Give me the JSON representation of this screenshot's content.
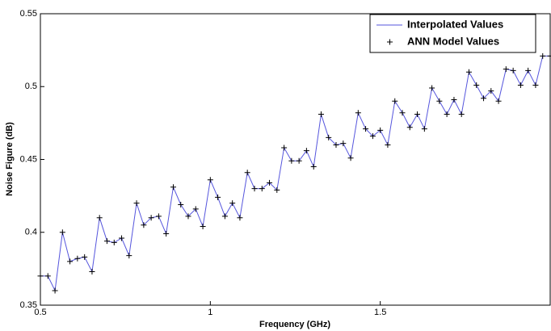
{
  "chart_data": {
    "type": "line",
    "x_label": "Frequency (GHz)",
    "y_label": "Noise Figure (dB)",
    "x": [
      0.5,
      0.522,
      0.543,
      0.565,
      0.587,
      0.609,
      0.63,
      0.652,
      0.674,
      0.696,
      0.717,
      0.739,
      0.761,
      0.783,
      0.804,
      0.826,
      0.848,
      0.87,
      0.891,
      0.913,
      0.935,
      0.957,
      0.978,
      1.0,
      1.022,
      1.043,
      1.065,
      1.087,
      1.109,
      1.13,
      1.152,
      1.174,
      1.196,
      1.217,
      1.239,
      1.261,
      1.283,
      1.304,
      1.326,
      1.348,
      1.37,
      1.391,
      1.413,
      1.435,
      1.457,
      1.478,
      1.5,
      1.522,
      1.543,
      1.565,
      1.587,
      1.609,
      1.63,
      1.652,
      1.674,
      1.696,
      1.717,
      1.739,
      1.761,
      1.783,
      1.804,
      1.826,
      1.848,
      1.87,
      1.891,
      1.913,
      1.935,
      1.957,
      1.978,
      2.0
    ],
    "series": [
      {
        "name": "Interpolated Values",
        "color": "#5555dd",
        "marker": "none",
        "values": [
          0.37,
          0.37,
          0.36,
          0.4,
          0.38,
          0.382,
          0.383,
          0.373,
          0.41,
          0.394,
          0.393,
          0.396,
          0.384,
          0.42,
          0.405,
          0.41,
          0.411,
          0.399,
          0.431,
          0.419,
          0.411,
          0.416,
          0.404,
          0.436,
          0.424,
          0.411,
          0.42,
          0.41,
          0.441,
          0.43,
          0.43,
          0.434,
          0.429,
          0.458,
          0.449,
          0.449,
          0.456,
          0.445,
          0.481,
          0.465,
          0.46,
          0.461,
          0.451,
          0.482,
          0.471,
          0.466,
          0.47,
          0.46,
          0.49,
          0.482,
          0.472,
          0.481,
          0.471,
          0.499,
          0.49,
          0.481,
          0.491,
          0.481,
          0.51,
          0.501,
          0.492,
          0.497,
          0.49,
          0.512,
          0.511,
          0.501,
          0.511,
          0.501,
          0.521,
          0.521
        ]
      },
      {
        "name": "ANN Model Values",
        "color": "#000000",
        "marker": "plus",
        "values": [
          0.37,
          0.37,
          0.36,
          0.4,
          0.38,
          0.382,
          0.383,
          0.373,
          0.41,
          0.394,
          0.393,
          0.396,
          0.384,
          0.42,
          0.405,
          0.41,
          0.411,
          0.399,
          0.431,
          0.419,
          0.411,
          0.416,
          0.404,
          0.436,
          0.424,
          0.411,
          0.42,
          0.41,
          0.441,
          0.43,
          0.43,
          0.434,
          0.429,
          0.458,
          0.449,
          0.449,
          0.456,
          0.445,
          0.481,
          0.465,
          0.46,
          0.461,
          0.451,
          0.482,
          0.471,
          0.466,
          0.47,
          0.46,
          0.49,
          0.482,
          0.472,
          0.481,
          0.471,
          0.499,
          0.49,
          0.481,
          0.491,
          0.481,
          0.51,
          0.501,
          0.492,
          0.497,
          0.49,
          0.512,
          0.511,
          0.501,
          0.511,
          0.501,
          0.521,
          0.521
        ]
      }
    ],
    "xlim": [
      0.5,
      2.0
    ],
    "ylim": [
      0.35,
      0.55
    ],
    "xticks": [
      0.5,
      1,
      1.5
    ],
    "yticks": [
      0.35,
      0.4,
      0.45,
      0.5,
      0.55
    ],
    "grid": false,
    "legend": "upper right"
  }
}
